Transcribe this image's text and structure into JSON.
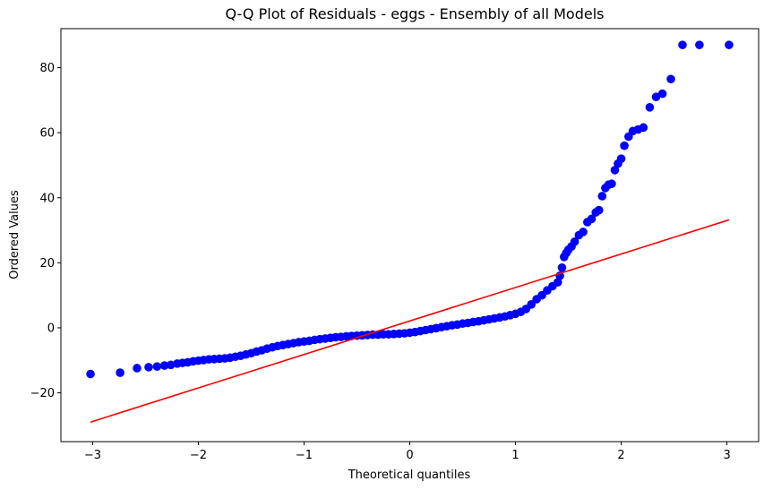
{
  "chart_data": {
    "type": "scatter",
    "title": "Q-Q Plot of Residuals - eggs  - Ensembly of all Models",
    "xlabel": "Theoretical quantiles",
    "ylabel": "Ordered Values",
    "xlim": [
      -3.3,
      3.3
    ],
    "ylim": [
      -35,
      92
    ],
    "xticks": [
      -3,
      -2,
      -1,
      0,
      1,
      2,
      3
    ],
    "yticks": [
      -20,
      0,
      20,
      40,
      60,
      80
    ],
    "xtick_labels": [
      "−3",
      "−2",
      "−1",
      "0",
      "1",
      "2",
      "3"
    ],
    "ytick_labels": [
      "−20",
      "0",
      "20",
      "40",
      "60",
      "80"
    ],
    "grid": false,
    "legend": "none",
    "colors": {
      "points": "#0000ff",
      "line": "#ff0000"
    },
    "series": [
      {
        "type": "scatter",
        "color": "#0000ff",
        "x": [
          -3.02,
          -2.74,
          -2.58,
          -2.47,
          -2.39,
          -2.32,
          -2.26,
          -2.2,
          -2.15,
          -2.1,
          -2.05,
          -2.0,
          -1.95,
          -1.9,
          -1.85,
          -1.8,
          -1.75,
          -1.7,
          -1.65,
          -1.6,
          -1.55,
          -1.5,
          -1.45,
          -1.4,
          -1.35,
          -1.3,
          -1.25,
          -1.2,
          -1.15,
          -1.1,
          -1.05,
          -1.0,
          -0.95,
          -0.9,
          -0.85,
          -0.8,
          -0.75,
          -0.7,
          -0.65,
          -0.6,
          -0.55,
          -0.5,
          -0.45,
          -0.4,
          -0.35,
          -0.3,
          -0.25,
          -0.2,
          -0.15,
          -0.1,
          -0.05,
          0.0,
          0.05,
          0.1,
          0.15,
          0.2,
          0.25,
          0.3,
          0.35,
          0.4,
          0.45,
          0.5,
          0.55,
          0.6,
          0.65,
          0.7,
          0.75,
          0.8,
          0.85,
          0.9,
          0.95,
          1.0,
          1.05,
          1.1,
          1.15,
          1.2,
          1.25,
          1.3,
          1.35,
          1.4,
          1.42,
          1.44,
          1.46,
          1.48,
          1.5,
          1.53,
          1.56,
          1.6,
          1.64,
          1.68,
          1.72,
          1.76,
          1.79,
          1.82,
          1.85,
          1.88,
          1.91,
          1.94,
          1.97,
          2.0,
          2.03,
          2.07,
          2.11,
          2.16,
          2.21,
          2.27,
          2.33,
          2.39,
          2.47,
          2.58,
          2.74,
          3.02
        ],
        "y": [
          -14.2,
          -13.8,
          -12.4,
          -12.1,
          -11.9,
          -11.6,
          -11.4,
          -11.0,
          -10.8,
          -10.6,
          -10.3,
          -10.1,
          -9.9,
          -9.7,
          -9.6,
          -9.5,
          -9.4,
          -9.2,
          -8.9,
          -8.6,
          -8.2,
          -7.8,
          -7.3,
          -6.9,
          -6.4,
          -6.0,
          -5.6,
          -5.3,
          -5.0,
          -4.7,
          -4.4,
          -4.2,
          -4.0,
          -3.7,
          -3.5,
          -3.3,
          -3.1,
          -2.9,
          -2.8,
          -2.6,
          -2.5,
          -2.4,
          -2.3,
          -2.2,
          -2.1,
          -2.1,
          -2.0,
          -2.0,
          -1.9,
          -1.8,
          -1.7,
          -1.5,
          -1.3,
          -1.0,
          -0.7,
          -0.4,
          -0.1,
          0.2,
          0.5,
          0.8,
          1.0,
          1.3,
          1.5,
          1.8,
          2.0,
          2.3,
          2.6,
          2.9,
          3.2,
          3.5,
          3.9,
          4.3,
          4.9,
          5.8,
          7.2,
          8.8,
          10.0,
          11.5,
          12.8,
          14.0,
          16.0,
          18.5,
          21.8,
          23.0,
          24.0,
          25.0,
          26.5,
          28.5,
          29.5,
          32.5,
          33.5,
          35.5,
          36.2,
          40.5,
          43.0,
          44.0,
          44.3,
          48.5,
          50.5,
          52.0,
          56.0,
          58.8,
          60.5,
          61.0,
          61.6,
          67.8,
          71.0,
          72.0,
          76.5,
          87.0,
          87.0,
          87.0
        ]
      },
      {
        "type": "line",
        "color": "#ff0000",
        "x": [
          -3.02,
          3.02
        ],
        "y": [
          -29.0,
          33.2
        ]
      }
    ]
  }
}
